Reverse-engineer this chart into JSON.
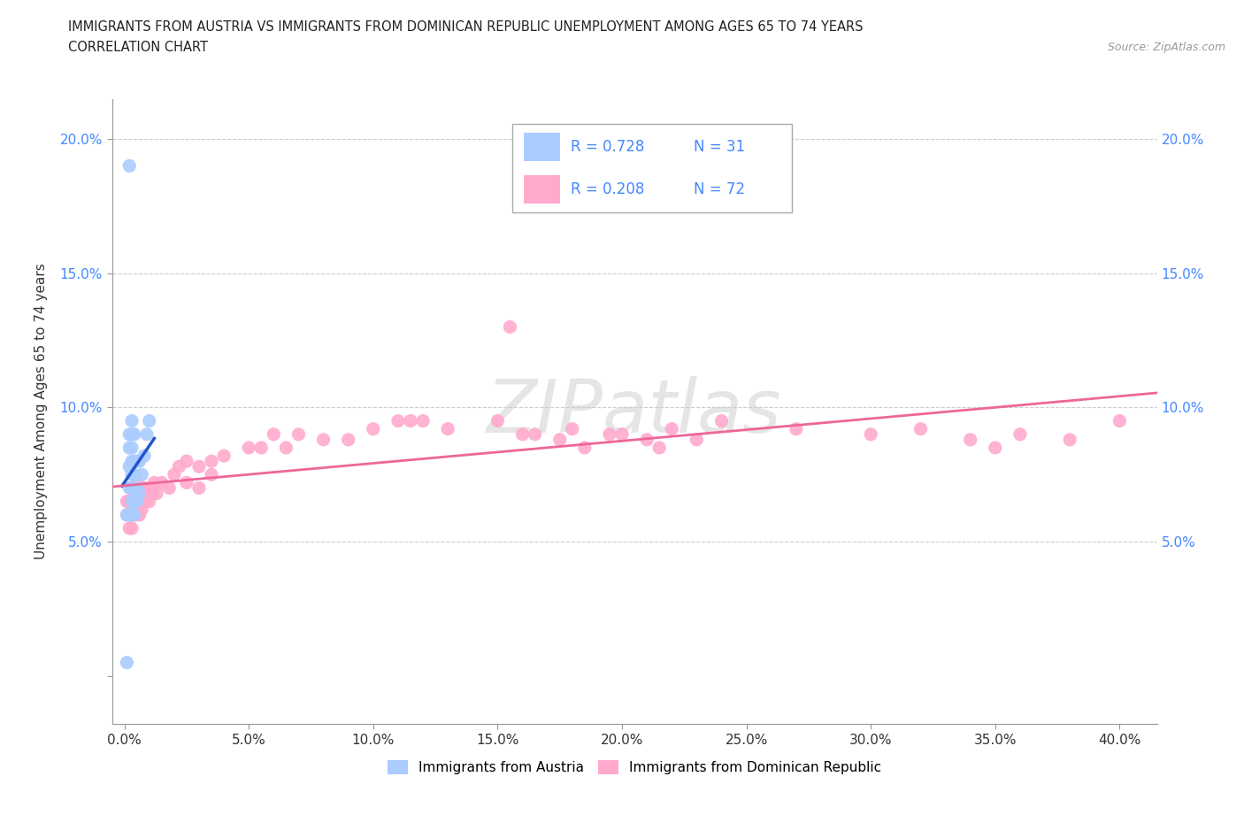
{
  "title_line1": "IMMIGRANTS FROM AUSTRIA VS IMMIGRANTS FROM DOMINICAN REPUBLIC UNEMPLOYMENT AMONG AGES 65 TO 74 YEARS",
  "title_line2": "CORRELATION CHART",
  "source_text": "Source: ZipAtlas.com",
  "ylabel": "Unemployment Among Ages 65 to 74 years",
  "xlim": [
    -0.005,
    0.415
  ],
  "ylim": [
    -0.018,
    0.215
  ],
  "xticks": [
    0.0,
    0.05,
    0.1,
    0.15,
    0.2,
    0.25,
    0.3,
    0.35,
    0.4
  ],
  "xticklabels": [
    "0.0%",
    "5.0%",
    "10.0%",
    "15.0%",
    "20.0%",
    "25.0%",
    "30.0%",
    "35.0%",
    "40.0%"
  ],
  "yticks": [
    0.0,
    0.05,
    0.1,
    0.15,
    0.2
  ],
  "yticklabels_left": [
    "",
    "5.0%",
    "10.0%",
    "15.0%",
    "20.0%"
  ],
  "yticklabels_right": [
    "",
    "5.0%",
    "10.0%",
    "15.0%",
    "20.0%"
  ],
  "austria_R": 0.728,
  "austria_N": 31,
  "dominican_R": 0.208,
  "dominican_N": 72,
  "austria_color": "#aaccff",
  "dominican_color": "#ffaacc",
  "austria_line_color": "#2255cc",
  "dominican_line_color": "#ee6699",
  "tick_color": "#4488ff",
  "watermark": "ZIPatlas",
  "austria_x": [
    0.001,
    0.001,
    0.002,
    0.002,
    0.002,
    0.002,
    0.002,
    0.003,
    0.003,
    0.003,
    0.003,
    0.003,
    0.003,
    0.003,
    0.003,
    0.004,
    0.004,
    0.004,
    0.004,
    0.004,
    0.004,
    0.005,
    0.005,
    0.005,
    0.006,
    0.006,
    0.007,
    0.008,
    0.009,
    0.01,
    0.002
  ],
  "austria_y": [
    0.005,
    0.06,
    0.06,
    0.07,
    0.078,
    0.085,
    0.09,
    0.06,
    0.065,
    0.07,
    0.075,
    0.08,
    0.085,
    0.09,
    0.095,
    0.06,
    0.065,
    0.07,
    0.075,
    0.08,
    0.09,
    0.065,
    0.07,
    0.08,
    0.068,
    0.08,
    0.075,
    0.082,
    0.09,
    0.095,
    0.19
  ],
  "dominican_x": [
    0.001,
    0.001,
    0.002,
    0.002,
    0.002,
    0.003,
    0.003,
    0.003,
    0.003,
    0.004,
    0.004,
    0.004,
    0.005,
    0.005,
    0.005,
    0.006,
    0.006,
    0.007,
    0.007,
    0.008,
    0.008,
    0.009,
    0.01,
    0.01,
    0.011,
    0.012,
    0.013,
    0.015,
    0.018,
    0.02,
    0.022,
    0.025,
    0.025,
    0.03,
    0.03,
    0.035,
    0.035,
    0.04,
    0.05,
    0.055,
    0.06,
    0.065,
    0.07,
    0.08,
    0.09,
    0.1,
    0.11,
    0.115,
    0.12,
    0.13,
    0.15,
    0.16,
    0.165,
    0.175,
    0.18,
    0.185,
    0.195,
    0.2,
    0.21,
    0.215,
    0.22,
    0.23,
    0.24,
    0.27,
    0.3,
    0.32,
    0.34,
    0.35,
    0.36,
    0.38,
    0.4,
    0.155
  ],
  "dominican_y": [
    0.06,
    0.065,
    0.055,
    0.06,
    0.065,
    0.055,
    0.06,
    0.065,
    0.07,
    0.06,
    0.065,
    0.07,
    0.06,
    0.065,
    0.072,
    0.06,
    0.065,
    0.062,
    0.068,
    0.065,
    0.07,
    0.068,
    0.065,
    0.07,
    0.068,
    0.072,
    0.068,
    0.072,
    0.07,
    0.075,
    0.078,
    0.072,
    0.08,
    0.07,
    0.078,
    0.075,
    0.08,
    0.082,
    0.085,
    0.085,
    0.09,
    0.085,
    0.09,
    0.088,
    0.088,
    0.092,
    0.095,
    0.095,
    0.095,
    0.092,
    0.095,
    0.09,
    0.09,
    0.088,
    0.092,
    0.085,
    0.09,
    0.09,
    0.088,
    0.085,
    0.092,
    0.088,
    0.095,
    0.092,
    0.09,
    0.092,
    0.088,
    0.085,
    0.09,
    0.088,
    0.095,
    0.13
  ]
}
